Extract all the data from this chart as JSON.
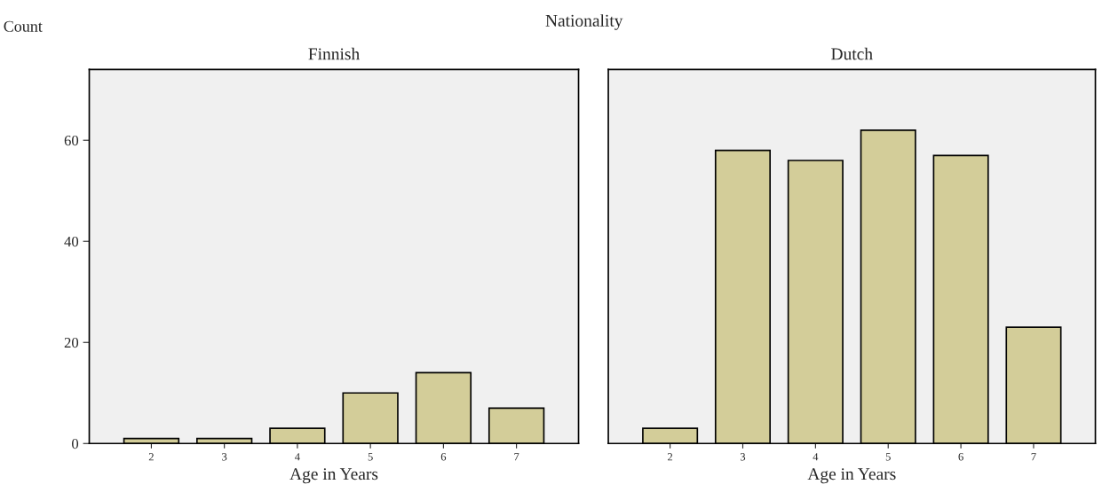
{
  "chart_data": [
    {
      "type": "bar",
      "title": "Finnish",
      "ylabel": "Count",
      "xlabel": "Age in Years",
      "annotations": [
        "Nationality"
      ],
      "categories": [
        "2",
        "3",
        "4",
        "5",
        "6",
        "7"
      ],
      "values": [
        1,
        1,
        3,
        10,
        14,
        7
      ],
      "color": "#d3cd99",
      "ylim": [
        0,
        74
      ],
      "yticks": [
        0,
        20,
        40,
        60
      ],
      "grid": false
    },
    {
      "type": "bar",
      "title": "Dutch",
      "xlabel": "Age in Years",
      "categories": [
        "2",
        "3",
        "4",
        "5",
        "6",
        "7"
      ],
      "values": [
        3,
        58,
        56,
        62,
        57,
        23
      ],
      "color": "#d3cd99",
      "ylim": [
        0,
        74
      ],
      "yticks": [
        0,
        20,
        40,
        60
      ],
      "grid": false,
      "tick_labels": "x"
    }
  ]
}
